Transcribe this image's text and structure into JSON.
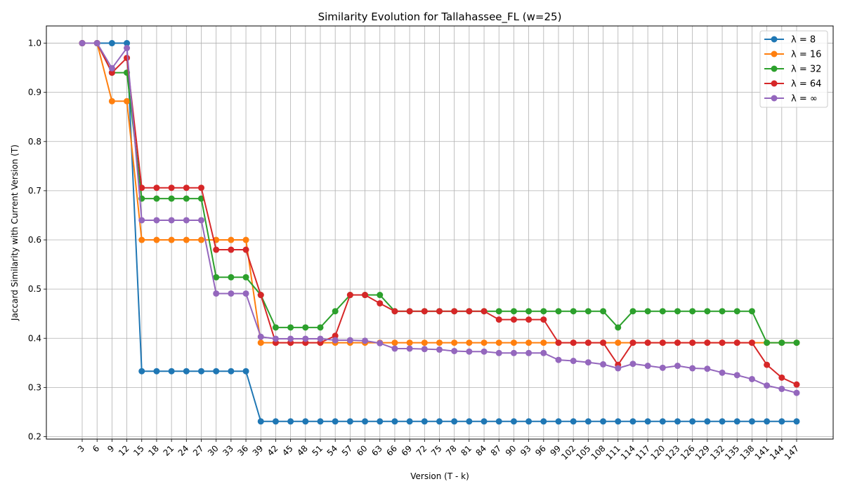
{
  "chart_data": {
    "type": "line",
    "title": "Similarity Evolution for Tallahassee_FL (w=25)",
    "xlabel": "Version (T - k)",
    "ylabel": "Jaccard Similarity with Current Version (T)",
    "ylim": [
      0.195,
      1.035
    ],
    "yticks": [
      0.2,
      0.3,
      0.4,
      0.5,
      0.6,
      0.7,
      0.8,
      0.9,
      1.0
    ],
    "ytick_labels": [
      "0.2",
      "0.3",
      "0.4",
      "0.5",
      "0.6",
      "0.7",
      "0.8",
      "0.9",
      "1.0"
    ],
    "grid": true,
    "legend_position": "top-right",
    "x": [
      3,
      6,
      9,
      12,
      15,
      18,
      21,
      24,
      27,
      30,
      33,
      36,
      39,
      42,
      45,
      48,
      51,
      54,
      57,
      60,
      63,
      66,
      69,
      72,
      75,
      78,
      81,
      84,
      87,
      90,
      93,
      96,
      99,
      102,
      105,
      108,
      111,
      114,
      117,
      120,
      123,
      126,
      129,
      132,
      135,
      138,
      141,
      144,
      147
    ],
    "series": [
      {
        "name": "λ = 8",
        "color": "#1f77b4",
        "values": [
          1.0,
          1.0,
          1.0,
          1.0,
          0.333,
          0.333,
          0.333,
          0.333,
          0.333,
          0.333,
          0.333,
          0.333,
          0.231,
          0.231,
          0.231,
          0.231,
          0.231,
          0.231,
          0.231,
          0.231,
          0.231,
          0.231,
          0.231,
          0.231,
          0.231,
          0.231,
          0.231,
          0.231,
          0.231,
          0.231,
          0.231,
          0.231,
          0.231,
          0.231,
          0.231,
          0.231,
          0.231,
          0.231,
          0.231,
          0.231,
          0.231,
          0.231,
          0.231,
          0.231,
          0.231,
          0.231,
          0.231,
          0.231,
          0.231
        ]
      },
      {
        "name": "λ = 16",
        "color": "#ff7f0e",
        "values": [
          1.0,
          1.0,
          0.882,
          0.882,
          0.6,
          0.6,
          0.6,
          0.6,
          0.6,
          0.6,
          0.6,
          0.6,
          0.391,
          0.391,
          0.391,
          0.391,
          0.391,
          0.391,
          0.391,
          0.391,
          0.391,
          0.391,
          0.391,
          0.391,
          0.391,
          0.391,
          0.391,
          0.391,
          0.391,
          0.391,
          0.391,
          0.391,
          0.391,
          0.391,
          0.391,
          0.391,
          0.391,
          0.391,
          0.391,
          0.391,
          0.391,
          0.391,
          0.391,
          0.391,
          0.391,
          0.391,
          0.391,
          0.391,
          0.391
        ]
      },
      {
        "name": "λ = 32",
        "color": "#2ca02c",
        "values": [
          1.0,
          1.0,
          0.94,
          0.94,
          0.684,
          0.684,
          0.684,
          0.684,
          0.684,
          0.524,
          0.524,
          0.524,
          0.488,
          0.422,
          0.422,
          0.422,
          0.422,
          0.455,
          0.488,
          0.488,
          0.488,
          0.455,
          0.455,
          0.455,
          0.455,
          0.455,
          0.455,
          0.455,
          0.455,
          0.455,
          0.455,
          0.455,
          0.455,
          0.455,
          0.455,
          0.455,
          0.422,
          0.455,
          0.455,
          0.455,
          0.455,
          0.455,
          0.455,
          0.455,
          0.455,
          0.455,
          0.391,
          0.391,
          0.391
        ]
      },
      {
        "name": "λ = 64",
        "color": "#d62728",
        "values": [
          1.0,
          1.0,
          0.94,
          0.97,
          0.706,
          0.706,
          0.706,
          0.706,
          0.706,
          0.58,
          0.58,
          0.58,
          0.488,
          0.391,
          0.391,
          0.391,
          0.391,
          0.405,
          0.488,
          0.488,
          0.471,
          0.455,
          0.455,
          0.455,
          0.455,
          0.455,
          0.455,
          0.455,
          0.438,
          0.438,
          0.438,
          0.438,
          0.391,
          0.391,
          0.391,
          0.391,
          0.346,
          0.391,
          0.391,
          0.391,
          0.391,
          0.391,
          0.391,
          0.391,
          0.391,
          0.391,
          0.346,
          0.32,
          0.306
        ]
      },
      {
        "name": "λ = ∞",
        "color": "#9467bd",
        "values": [
          1.0,
          1.0,
          0.949,
          0.99,
          0.64,
          0.64,
          0.64,
          0.64,
          0.64,
          0.491,
          0.491,
          0.491,
          0.403,
          0.399,
          0.399,
          0.399,
          0.399,
          0.396,
          0.396,
          0.395,
          0.39,
          0.379,
          0.379,
          0.378,
          0.377,
          0.374,
          0.373,
          0.373,
          0.37,
          0.37,
          0.37,
          0.37,
          0.356,
          0.354,
          0.351,
          0.347,
          0.339,
          0.348,
          0.344,
          0.34,
          0.344,
          0.339,
          0.338,
          0.33,
          0.325,
          0.317,
          0.304,
          0.297,
          0.289
        ]
      }
    ]
  }
}
